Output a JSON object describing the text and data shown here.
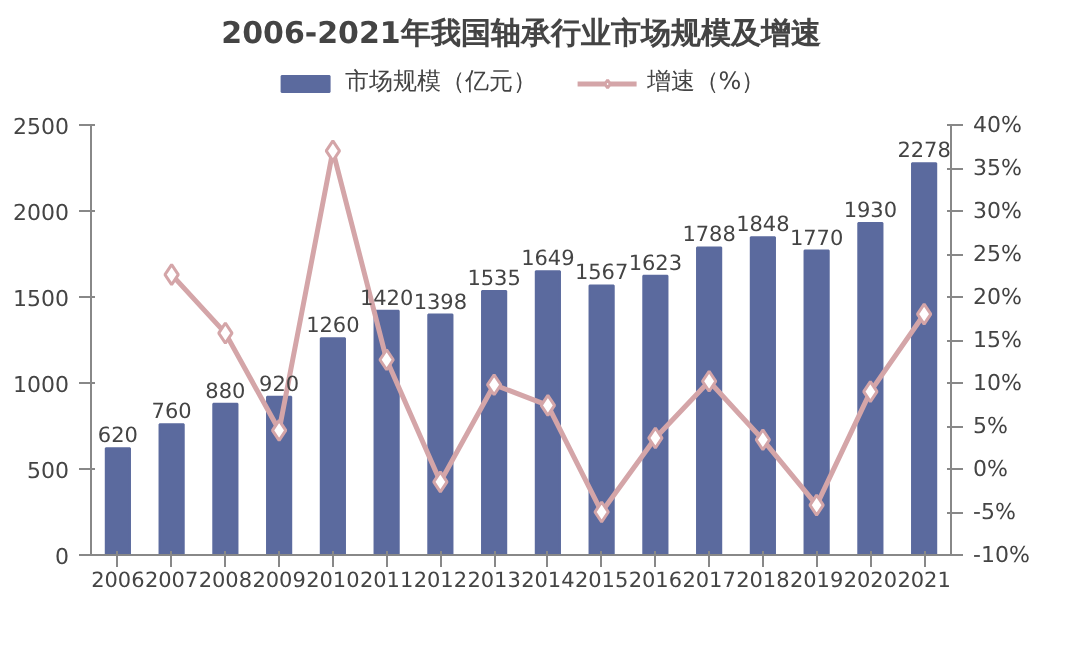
{
  "chart_data": {
    "type": "bar",
    "title": "2006-2021年我国轴承行业市场规模及增速",
    "categories": [
      "2006",
      "2007",
      "2008",
      "2009",
      "2010",
      "2011",
      "2012",
      "2013",
      "2014",
      "2015",
      "2016",
      "2017",
      "2018",
      "2019",
      "2020",
      "2021"
    ],
    "series": [
      {
        "name": "市场规模（亿元）",
        "color": "#5b6a9e",
        "values": [
          620,
          760,
          880,
          920,
          1260,
          1420,
          1398,
          1535,
          1649,
          1567,
          1623,
          1788,
          1848,
          1770,
          1930,
          2278
        ],
        "value_labels": [
          "620",
          "760",
          "880",
          "920",
          "1260",
          "1420",
          "1398",
          "1535",
          "1649",
          "1567",
          "1623",
          "1788",
          "1848",
          "1770",
          "1930",
          "2278"
        ]
      },
      {
        "name": "增速（%）",
        "type": "line",
        "axis": "y2",
        "color": "#d4a5a8",
        "marker": "diamond",
        "values": [
          null,
          22.6,
          15.8,
          4.5,
          37.0,
          12.7,
          -1.5,
          9.8,
          7.4,
          -5.0,
          3.6,
          10.2,
          3.4,
          -4.2,
          9.0,
          18.0
        ]
      }
    ],
    "ylim": [
      0,
      2500
    ],
    "yticks": [
      0,
      500,
      1000,
      1500,
      2000,
      2500
    ],
    "y2lim": [
      -10,
      40
    ],
    "y2ticks": [
      {
        "value": -10,
        "label": "-10%"
      },
      {
        "value": -5,
        "label": "-5%"
      },
      {
        "value": 0,
        "label": "0%"
      },
      {
        "value": 5,
        "label": "5%"
      },
      {
        "value": 10,
        "label": "10%"
      },
      {
        "value": 15,
        "label": "15%"
      },
      {
        "value": 20,
        "label": "20%"
      },
      {
        "value": 25,
        "label": "25%"
      },
      {
        "value": 30,
        "label": "30%"
      },
      {
        "value": 35,
        "label": "35%"
      },
      {
        "value": 40,
        "label": "40%"
      }
    ],
    "legend": "top",
    "grid": false
  }
}
